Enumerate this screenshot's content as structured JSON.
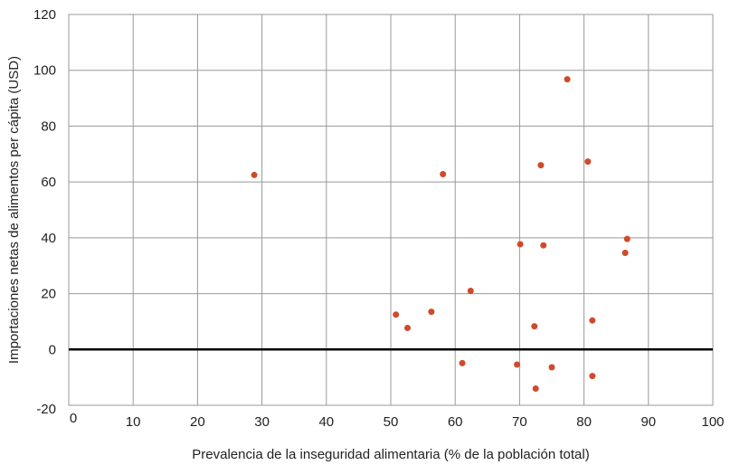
{
  "chart_data": {
    "type": "scatter",
    "title": "",
    "xlabel": "Prevalencia de la inseguridad alimentaria (% de la población total)",
    "ylabel": "Importaciones netas de alimentos per cápita (USD)",
    "xlim": [
      0,
      100
    ],
    "ylim": [
      -20,
      120
    ],
    "x_ticks": [
      "0",
      "10",
      "20",
      "30",
      "40",
      "50",
      "60",
      "70",
      "80",
      "90",
      "100"
    ],
    "y_ticks": [
      "-20",
      "0",
      "20",
      "40",
      "60",
      "80",
      "100",
      "120"
    ],
    "grid": true,
    "zero_line": true,
    "colors": {
      "point": "#d04a2a",
      "grid": "#999999",
      "axis": "#000000"
    },
    "series": [
      {
        "points": [
          {
            "x": 28.8,
            "y": 62.5
          },
          {
            "x": 50.8,
            "y": 12.5
          },
          {
            "x": 52.6,
            "y": 7.7
          },
          {
            "x": 56.3,
            "y": 13.5
          },
          {
            "x": 58.1,
            "y": 62.8
          },
          {
            "x": 61.1,
            "y": -4.9
          },
          {
            "x": 62.4,
            "y": 21.0
          },
          {
            "x": 69.6,
            "y": -5.4
          },
          {
            "x": 70.1,
            "y": 37.7
          },
          {
            "x": 72.3,
            "y": 8.3
          },
          {
            "x": 72.5,
            "y": -14.0
          },
          {
            "x": 73.3,
            "y": 66.0
          },
          {
            "x": 73.7,
            "y": 37.3
          },
          {
            "x": 75.0,
            "y": -6.4
          },
          {
            "x": 77.4,
            "y": 96.8
          },
          {
            "x": 80.6,
            "y": 67.3
          },
          {
            "x": 81.3,
            "y": 10.4
          },
          {
            "x": 81.3,
            "y": -9.5
          },
          {
            "x": 86.4,
            "y": 34.6
          },
          {
            "x": 86.7,
            "y": 39.6
          }
        ]
      }
    ]
  }
}
